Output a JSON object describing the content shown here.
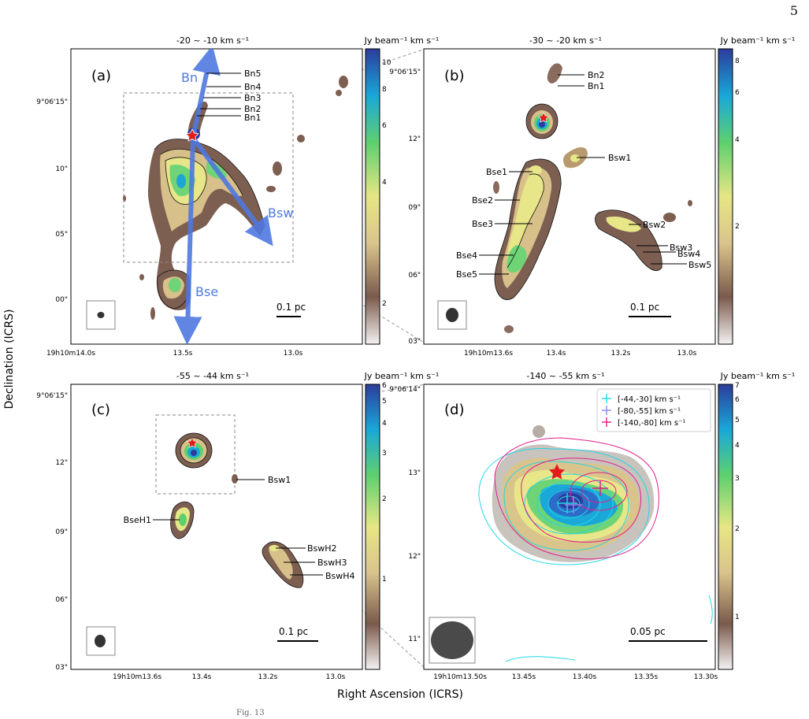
{
  "page_number": "5",
  "caption_fragment": "Fig. 13",
  "figure": {
    "shared_xlabel": "Right Ascension (ICRS)",
    "shared_ylabel": "Declination (ICRS)",
    "colorbar_unit": "Jy beam⁻¹ km s⁻¹",
    "colormap": [
      "#f4f2f2",
      "#7a5a4c",
      "#d9c48c",
      "#e6e684",
      "#5fd06e",
      "#19a8d8",
      "#2c3c9c"
    ],
    "panels": [
      {
        "id": "a",
        "label": "(a)",
        "title": "-20 ~ -10 km s⁻¹",
        "cb_ticks": [
          "2",
          "4",
          "6",
          "8",
          "10"
        ],
        "x_ticks": [
          "19h10m14.0s",
          "13.5s",
          "13.0s"
        ],
        "y_ticks": [
          "9°06'15\"",
          "10\"",
          "05\"",
          "00\""
        ],
        "scalebar": "0.1 pc",
        "outflows": [
          "Bn",
          "Bsw",
          "Bse"
        ],
        "knots": [
          "Bn5",
          "Bn4",
          "Bn3",
          "Bn2",
          "Bn1"
        ]
      },
      {
        "id": "b",
        "label": "(b)",
        "title": "-30 ~ -20 km s⁻¹",
        "cb_ticks": [
          "2",
          "4",
          "6",
          "8"
        ],
        "x_ticks": [
          "19h10m13.6s",
          "13.4s",
          "13.2s",
          "13.0s"
        ],
        "y_ticks": [
          "9°06'15\"",
          "12\"",
          "09\"",
          "06\"",
          "03\""
        ],
        "scalebar": "0.1 pc",
        "knots": [
          "Bn2",
          "Bn1",
          "Bsw1",
          "Bse1",
          "Bse2",
          "Bse3",
          "Bse4",
          "Bse5",
          "Bsw2",
          "Bsw3",
          "Bsw4",
          "Bsw5"
        ]
      },
      {
        "id": "c",
        "label": "(c)",
        "title": "-55 ~ -44 km s⁻¹",
        "cb_ticks": [
          "1",
          "2",
          "3",
          "4",
          "5",
          "6"
        ],
        "x_ticks": [
          "19h10m13.6s",
          "13.4s",
          "13.2s",
          "13.0s"
        ],
        "y_ticks": [
          "9°06'15\"",
          "12\"",
          "09\"",
          "06\"",
          "03\""
        ],
        "scalebar": "0.1 pc",
        "knots": [
          "Bsw1",
          "BseH1",
          "BswH2",
          "BswH3",
          "BswH4"
        ]
      },
      {
        "id": "d",
        "label": "(d)",
        "title": "-140 ~ -55 km s⁻¹",
        "cb_ticks": [
          "1",
          "2",
          "3",
          "4",
          "5",
          "6",
          "7"
        ],
        "x_ticks": [
          "19h10m13.50s",
          "13.45s",
          "13.40s",
          "13.35s",
          "13.30s"
        ],
        "y_ticks": [
          "9°06'14\"",
          "13\"",
          "12\"",
          "11\""
        ],
        "scalebar": "0.05 pc",
        "legend": [
          {
            "label": "[-44,-30] km s⁻¹",
            "color": "#22d6e8"
          },
          {
            "label": "[-80,-55] km s⁻¹",
            "color": "#8a8cf0"
          },
          {
            "label": "[-140,-80] km s⁻¹",
            "color": "#e0208a"
          }
        ]
      }
    ]
  }
}
